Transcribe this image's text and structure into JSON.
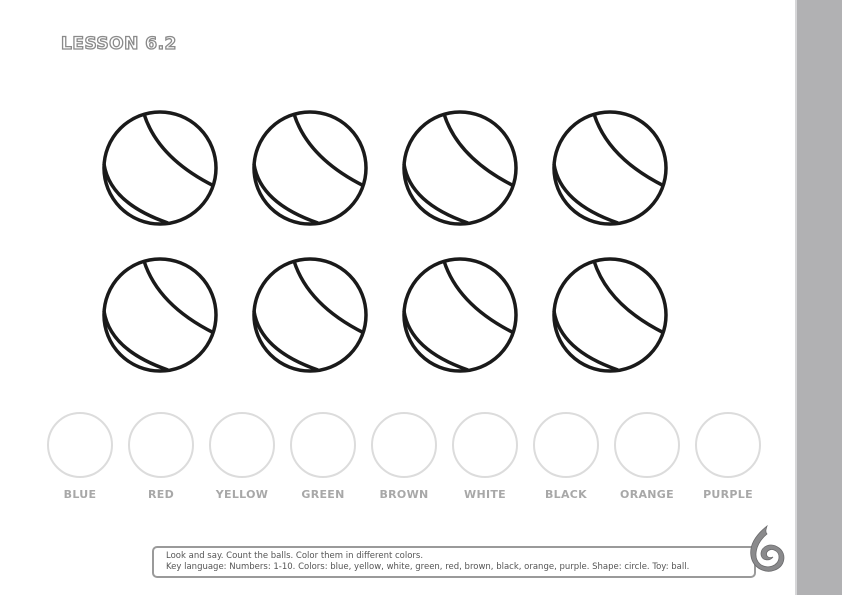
{
  "page": {
    "lesson_title": "LESSON 6.2"
  },
  "balls": {
    "count": 8,
    "icon": "beach-ball-outline-icon",
    "rows": 2,
    "per_row": 4
  },
  "color_swatches": [
    {
      "label": "BLUE"
    },
    {
      "label": "RED"
    },
    {
      "label": "YELLOW"
    },
    {
      "label": "GREEN"
    },
    {
      "label": "BROWN"
    },
    {
      "label": "WHITE"
    },
    {
      "label": "BLACK"
    },
    {
      "label": "ORANGE"
    },
    {
      "label": "PURPLE"
    }
  ],
  "instructions": {
    "line1": "Look and say. Count the balls. Color them in different colors.",
    "line2": "Key language: Numbers: 1-10. Colors: blue, yellow, white, green, red, brown, black, orange, purple. Shape: circle. Toy: ball."
  },
  "logo": {
    "icon": "swirl-logo-icon"
  },
  "colors": {
    "sidebar": "#b1b1b3",
    "outline": "#1a1a1a",
    "swatch_border": "#dcdcdc",
    "label_gray": "#a8a8a8"
  }
}
